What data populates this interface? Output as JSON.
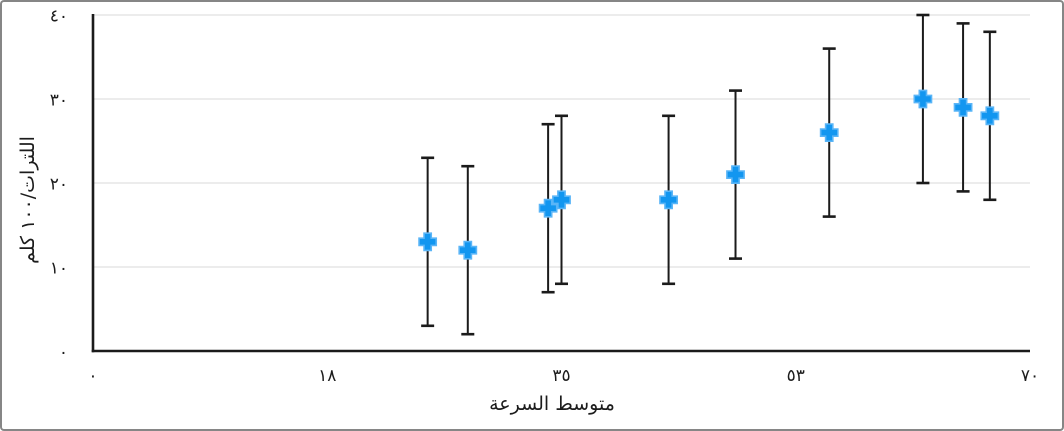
{
  "chart_data": {
    "type": "scatter",
    "title": "",
    "xlabel": "متوسط السرعة",
    "ylabel": "اللترات/١٠٠ كلم",
    "xlim": [
      0,
      70
    ],
    "ylim": [
      0,
      40
    ],
    "grid": true,
    "legend": false,
    "x_ticks": [
      {
        "value": 0,
        "label": "٠"
      },
      {
        "value": 17.5,
        "label": "١٨"
      },
      {
        "value": 35,
        "label": "٣٥"
      },
      {
        "value": 52.5,
        "label": "٥٣"
      },
      {
        "value": 70,
        "label": "٧٠"
      }
    ],
    "y_ticks": [
      {
        "value": 0,
        "label": "٠"
      },
      {
        "value": 10,
        "label": "١٠"
      },
      {
        "value": 20,
        "label": "٢٠"
      },
      {
        "value": 30,
        "label": "٣٠"
      },
      {
        "value": 40,
        "label": "٤٠"
      }
    ],
    "series": [
      {
        "name": "fuel-consumption-vs-speed",
        "marker": "plus",
        "marker_color": "#1296F0",
        "marker_edge_color": "#5AB5F7",
        "error_bar": {
          "direction": "both",
          "value": 10,
          "color": "#1b1b1b"
        },
        "points": [
          {
            "x": 25,
            "y": 13
          },
          {
            "x": 28,
            "y": 12
          },
          {
            "x": 34,
            "y": 17
          },
          {
            "x": 35,
            "y": 18
          },
          {
            "x": 43,
            "y": 18
          },
          {
            "x": 48,
            "y": 21
          },
          {
            "x": 55,
            "y": 26
          },
          {
            "x": 62,
            "y": 30
          },
          {
            "x": 65,
            "y": 29
          },
          {
            "x": 67,
            "y": 28
          }
        ]
      }
    ],
    "colors": {
      "background": "#ffffff",
      "grid": "#d8d8d8",
      "axis": "#1b1b1b",
      "text": "#1c1c1c",
      "figure_border": "#868686"
    }
  }
}
